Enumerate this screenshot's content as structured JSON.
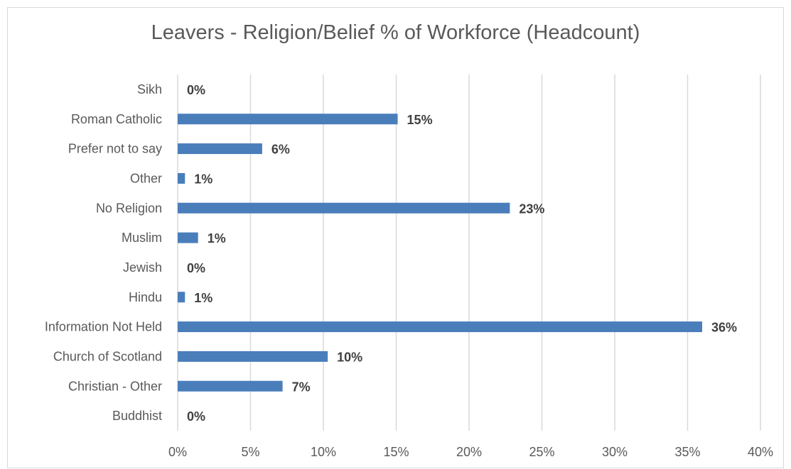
{
  "chart_data": {
    "type": "bar",
    "orientation": "horizontal",
    "title": "Leavers - Religion/Belief % of Workforce (Headcount)",
    "xlabel": "",
    "ylabel": "",
    "categories": [
      "Sikh",
      "Roman Catholic",
      "Prefer not to say",
      "Other",
      "No Religion",
      "Muslim",
      "Jewish",
      "Hindu",
      "Information Not Held",
      "Church of Scotland",
      "Christian - Other",
      "Buddhist"
    ],
    "values": [
      0,
      15.1,
      5.8,
      0.5,
      22.8,
      1.4,
      0,
      0.5,
      36,
      10.3,
      7.2,
      0
    ],
    "data_labels": [
      "0%",
      "15%",
      "6%",
      "1%",
      "23%",
      "1%",
      "0%",
      "1%",
      "36%",
      "10%",
      "7%",
      "0%"
    ],
    "xlim": [
      0,
      40
    ],
    "x_ticks": [
      0,
      5,
      10,
      15,
      20,
      25,
      30,
      35,
      40
    ],
    "x_tick_labels": [
      "0%",
      "5%",
      "10%",
      "15%",
      "20%",
      "25%",
      "30%",
      "35%",
      "40%"
    ],
    "grid": true,
    "legend": "none",
    "bar_color": "#4a7ebb",
    "grid_color": "#d9d9d9"
  }
}
